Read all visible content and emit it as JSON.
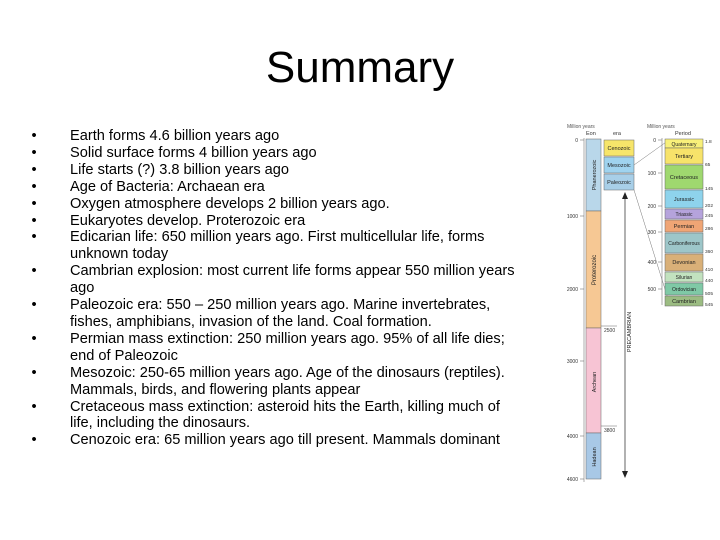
{
  "slide": {
    "title": "Summary",
    "bullet_glyph": "•",
    "bullets": [
      "Earth forms 4.6 billion years ago",
      "Solid surface forms 4 billion years ago",
      "Life starts (?) 3.8 billion years ago",
      "Age of Bacteria: Archaean era",
      "Oxygen atmosphere develops 2 billion years ago.",
      "Eukaryotes develop. Proterozoic era",
      "Edicarian life: 650 million years ago.  First multicellular life, forms unknown today",
      "Cambrian explosion: most current life forms appear 550 million years ago",
      "Paleozoic era: 550 – 250 million years ago.  Marine invertebrates, fishes, amphibians, invasion of the land.  Coal formation.",
      "Permian mass extinction: 250 million years ago.  95% of all life dies; end of Paleozoic",
      "Mesozoic: 250-65 million years ago.  Age of the dinosaurs (reptiles).  Mammals, birds, and flowering plants appear",
      "Cretaceous mass extinction: asteroid hits the Earth, killing much of life, including the dinosaurs.",
      "Cenozoic era: 65 million years ago till present.  Mammals dominant"
    ]
  },
  "timescale": {
    "headers": {
      "million_years_left": "Million years",
      "eon": "Eon",
      "era": "era",
      "million_years_right": "Million years",
      "period": "Period"
    },
    "left_ticks": [
      "0",
      "1000",
      "2000",
      "3000",
      "4000",
      "4600"
    ],
    "eons": [
      "Phanerozoic",
      "Proterozoic",
      "Archean",
      "Hadean"
    ],
    "eras": [
      "Cenozoic",
      "Mesozoic",
      "Paleozoic"
    ],
    "precambrian_label": "PRECAMBRIAN",
    "boundary_labels": [
      "2500",
      "3800"
    ],
    "right_ticks": [
      "0",
      "100",
      "200",
      "300",
      "400",
      "500"
    ],
    "periods": [
      "Quaternary",
      "Tertiary",
      "Cretaceous",
      "Jurassic",
      "Triassic",
      "Permian",
      "Carboniferous",
      "Devonian",
      "Silurian",
      "Ordovician",
      "Cambrian"
    ],
    "period_boundaries": [
      "1.8",
      "65",
      "145",
      "202",
      "245",
      "286",
      "360",
      "410",
      "440",
      "505",
      "545"
    ],
    "colors": {
      "phanerozoic": "#b9d7ea",
      "proterozoic": "#f6c894",
      "archean": "#f7c4d4",
      "hadean": "#a8c8e6",
      "cenozoic": "#f7e56a",
      "mesozoic": "#9fd3ef",
      "paleozoic": "#a8cfe8",
      "quaternary": "#f8f07a",
      "tertiary": "#f7e36a",
      "cretaceous": "#9fd86f",
      "jurassic": "#8ed3ec",
      "triassic": "#b5a3dc",
      "permian": "#f0a575",
      "carboniferous": "#9dc6c9",
      "devonian": "#d9b078",
      "silurian": "#c2e2bf",
      "ordovician": "#7fc9a6",
      "cambrian": "#9bbc82"
    }
  }
}
